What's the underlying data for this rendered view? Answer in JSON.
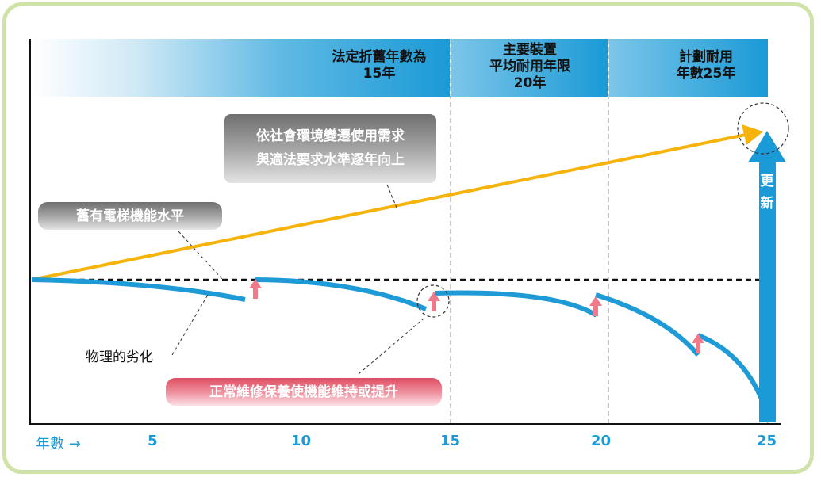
{
  "header": {
    "label_15": [
      "法定折舊年數為",
      "15年"
    ],
    "label_20": [
      "主要裝置",
      "平均耐用年限",
      "20年"
    ],
    "label_25": [
      "計劃耐用",
      "年數25年"
    ]
  },
  "annotations": {
    "rising_requirement": [
      "依社會環境變遷使用需求",
      "與適法要求水準逐年向上"
    ],
    "existing_level": "舊有電梯機能水平",
    "physical_deterioration": "物理的劣化",
    "maintenance": "正常維修保養使機能維持或提升",
    "renewal": [
      "更",
      "新"
    ]
  },
  "axis": {
    "label": "年數 →",
    "ticks": [
      "5",
      "10",
      "15",
      "20",
      "25"
    ]
  },
  "colors": {
    "header_blue": "#1a9ad6",
    "curve_blue": "#1e9ad6",
    "requirement_line": "#f5b30c",
    "grey_box": "#8c8c8c",
    "pink_box": "#e46575",
    "repair_arrow": "#f07a8a",
    "frame": "#cfe3a8"
  }
}
